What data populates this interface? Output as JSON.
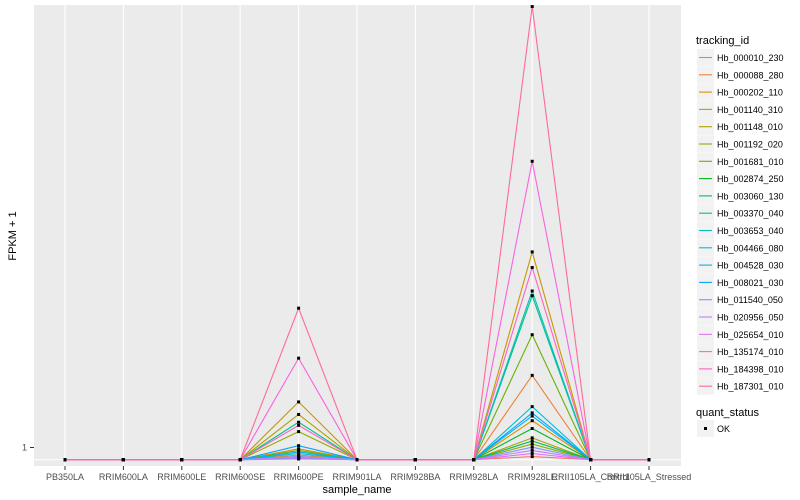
{
  "chart_data": {
    "type": "line",
    "xlabel": "sample_name",
    "ylabel": "FPKM + 1",
    "y_tick_labels": [
      "1"
    ],
    "categories": [
      "PB350LA",
      "RRIM600LA",
      "RRIM600LE",
      "RRIM600SE",
      "RRIM600PE",
      "RRIM901LA",
      "RRIM928BA",
      "RRIM928LA",
      "RRIM928LE",
      "RRII105LA_Control",
      "RRII105LA_Stressed"
    ],
    "legend_title": "tracking_id",
    "legend_title_status": "quant_status",
    "status_label": "OK",
    "grid": true,
    "legend_position": "right",
    "ylim": [
      0.6,
      30.1
    ],
    "series": [
      {
        "name": "Hb_000010_230",
        "color": "#F8766D",
        "values": [
          1,
          1,
          1,
          1,
          1.1,
          1,
          1,
          1,
          1.2,
          1,
          1
        ]
      },
      {
        "name": "Hb_000088_280",
        "color": "#EC8239",
        "values": [
          1,
          1,
          1,
          1,
          1.3,
          1,
          1,
          1,
          6.4,
          1,
          1
        ]
      },
      {
        "name": "Hb_000202_110",
        "color": "#DB8E00",
        "values": [
          1,
          1,
          1,
          1,
          1.7,
          1,
          1,
          1,
          3.5,
          1,
          1
        ]
      },
      {
        "name": "Hb_001140_310",
        "color": "#C79800",
        "values": [
          1,
          1,
          1,
          1,
          4.7,
          1,
          1,
          1,
          14.3,
          1,
          1
        ]
      },
      {
        "name": "Hb_001148_010",
        "color": "#AEA200",
        "values": [
          1,
          1,
          1,
          1,
          3.9,
          1,
          1,
          1,
          2.4,
          1,
          1
        ]
      },
      {
        "name": "Hb_001192_020",
        "color": "#8FAA00",
        "values": [
          1,
          1,
          1,
          1,
          2.8,
          1,
          1,
          1,
          2.0,
          1,
          1
        ]
      },
      {
        "name": "Hb_001681_010",
        "color": "#64B200",
        "values": [
          1,
          1,
          1,
          1,
          1.6,
          1,
          1,
          1,
          9.0,
          1,
          1
        ]
      },
      {
        "name": "Hb_002874_250",
        "color": "#00B81B",
        "values": [
          1,
          1,
          1,
          1,
          1.2,
          1,
          1,
          1,
          3.0,
          1,
          1
        ]
      },
      {
        "name": "Hb_003060_130",
        "color": "#00BD5C",
        "values": [
          1,
          1,
          1,
          1,
          1.1,
          1,
          1,
          1,
          2.2,
          1,
          1
        ]
      },
      {
        "name": "Hb_003370_040",
        "color": "#00C08E",
        "values": [
          1,
          1,
          1,
          1,
          3.4,
          1,
          1,
          1,
          11.5,
          1,
          1
        ]
      },
      {
        "name": "Hb_003653_040",
        "color": "#00C1B7",
        "values": [
          1,
          1,
          1,
          1,
          1.2,
          1,
          1,
          1,
          11.8,
          1,
          1
        ]
      },
      {
        "name": "Hb_004466_080",
        "color": "#00BDD4",
        "values": [
          1,
          1,
          1,
          1,
          1.4,
          1,
          1,
          1,
          4.4,
          1,
          1
        ]
      },
      {
        "name": "Hb_004528_030",
        "color": "#00B5EE",
        "values": [
          1,
          1,
          1,
          1,
          1.5,
          1,
          1,
          1,
          3.8,
          1,
          1
        ]
      },
      {
        "name": "Hb_008021_030",
        "color": "#00A7FF",
        "values": [
          1,
          1,
          1,
          1,
          1.9,
          1,
          1,
          1,
          4.0,
          1,
          1
        ]
      },
      {
        "name": "Hb_011540_050",
        "color": "#7F96FF",
        "values": [
          1,
          1,
          1,
          1,
          1.1,
          1,
          1,
          1,
          1.8,
          1,
          1
        ]
      },
      {
        "name": "Hb_020956_050",
        "color": "#BC81FF",
        "values": [
          1,
          1,
          1,
          1,
          1.2,
          1,
          1,
          1,
          1.6,
          1,
          1
        ]
      },
      {
        "name": "Hb_025654_010",
        "color": "#E26EF7",
        "values": [
          1,
          1,
          1,
          1,
          1.05,
          1,
          1,
          1,
          1.4,
          1,
          1
        ]
      },
      {
        "name": "Hb_135174_010",
        "color": "#F863DF",
        "values": [
          1,
          1,
          1,
          1,
          7.5,
          1,
          1,
          1,
          20.1,
          1,
          1
        ]
      },
      {
        "name": "Hb_184398_010",
        "color": "#FF62BF",
        "values": [
          1,
          1,
          1,
          1,
          3.2,
          1,
          1,
          1,
          13.3,
          1,
          1
        ]
      },
      {
        "name": "Hb_187301_010",
        "color": "#FF6A98",
        "values": [
          1,
          1,
          1,
          1,
          10.7,
          1,
          1,
          1,
          30.0,
          1,
          1
        ]
      }
    ]
  }
}
